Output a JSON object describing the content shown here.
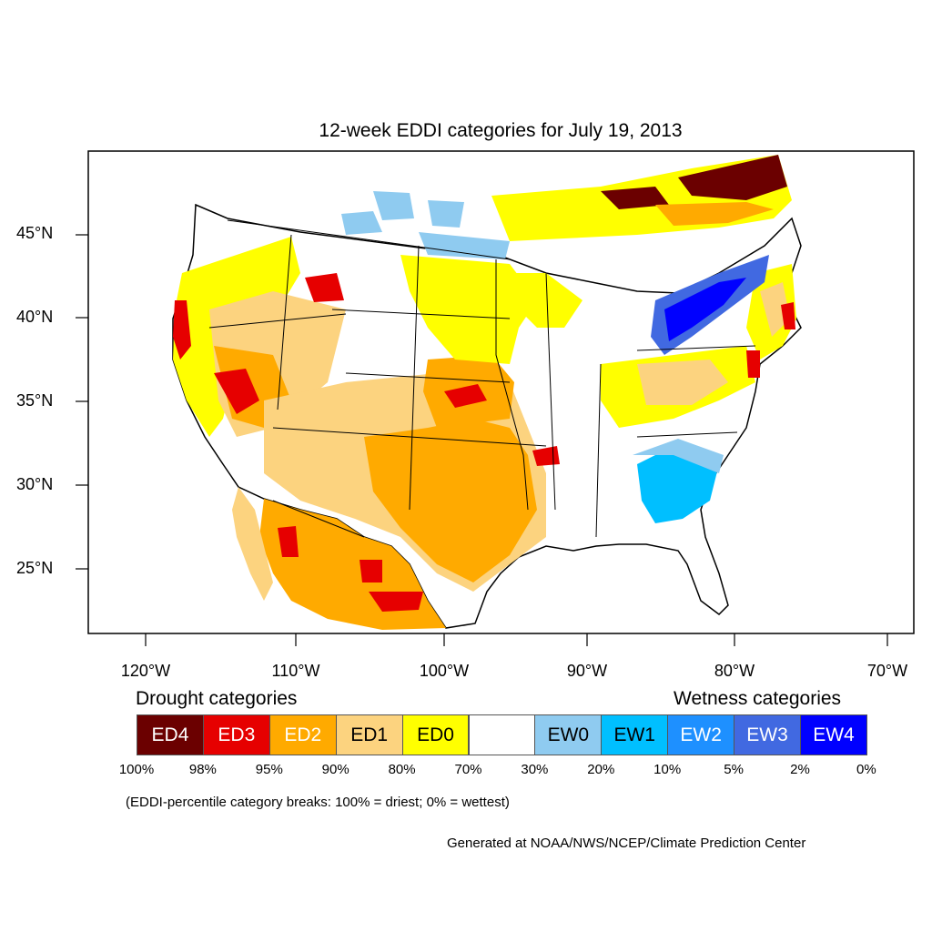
{
  "title": "12-week EDDI categories for July 19, 2013",
  "lat_labels": [
    "45°N",
    "40°N",
    "35°N",
    "30°N",
    "25°N"
  ],
  "lon_labels": [
    "120°W",
    "110°W",
    "100°W",
    "90°W",
    "80°W",
    "70°W"
  ],
  "legend": {
    "drought_heading": "Drought categories",
    "wetness_heading": "Wetness categories",
    "categories": [
      {
        "label": "ED4",
        "color": "#6b0000",
        "text_color": "#ffffff"
      },
      {
        "label": "ED3",
        "color": "#e60000",
        "text_color": "#ffffff"
      },
      {
        "label": "ED2",
        "color": "#ffaa00",
        "text_color": "#ffffff"
      },
      {
        "label": "ED1",
        "color": "#fcd37f",
        "text_color": "#000000"
      },
      {
        "label": "ED0",
        "color": "#ffff00",
        "text_color": "#000000"
      },
      {
        "label": "",
        "color": "#ffffff",
        "text_color": "#000000"
      },
      {
        "label": "EW0",
        "color": "#8fcbf0",
        "text_color": "#000000"
      },
      {
        "label": "EW1",
        "color": "#00bfff",
        "text_color": "#000000"
      },
      {
        "label": "EW2",
        "color": "#1e90ff",
        "text_color": "#ffffff"
      },
      {
        "label": "EW3",
        "color": "#4169e1",
        "text_color": "#ffffff"
      },
      {
        "label": "EW4",
        "color": "#0000ff",
        "text_color": "#ffffff"
      }
    ],
    "breaks": [
      "100%",
      "98%",
      "95%",
      "90%",
      "80%",
      "70%",
      "30%",
      "20%",
      "10%",
      "5%",
      "2%",
      "0%"
    ]
  },
  "note": "(EDDI-percentile category breaks: 100% = driest; 0% = wettest)",
  "credit": "Generated at NOAA/NWS/NCEP/Climate Prediction Center"
}
